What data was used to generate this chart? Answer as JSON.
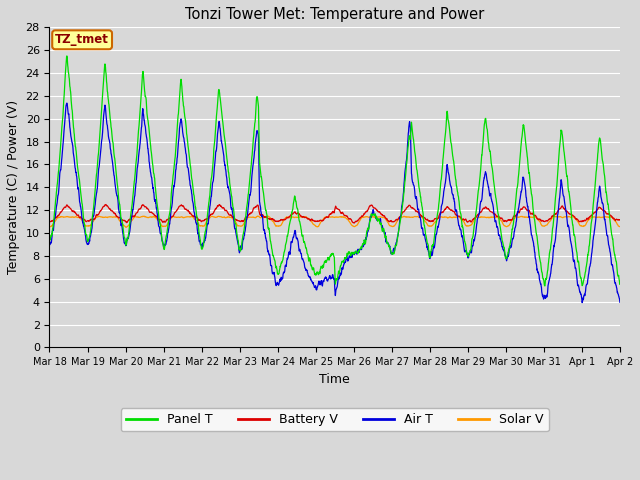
{
  "title": "Tonzi Tower Met: Temperature and Power",
  "xlabel": "Time",
  "ylabel": "Temperature (C) / Power (V)",
  "ylim": [
    0,
    28
  ],
  "yticks": [
    0,
    2,
    4,
    6,
    8,
    10,
    12,
    14,
    16,
    18,
    20,
    22,
    24,
    26,
    28
  ],
  "annotation_label": "TZ_tmet",
  "annotation_color": "#8b0000",
  "annotation_bg": "#ffff99",
  "annotation_border": "#cc6600",
  "colors": {
    "Panel T": "#00dd00",
    "Battery V": "#dd0000",
    "Air T": "#0000dd",
    "Solar V": "#ff9900"
  },
  "legend_labels": [
    "Panel T",
    "Battery V",
    "Air T",
    "Solar V"
  ],
  "bg_color": "#d8d8d8",
  "plot_bg": "#d8d8d8",
  "grid_color": "#ffffff",
  "tick_labels": [
    "Mar 18",
    "Mar 19",
    "Mar 20",
    "Mar 21",
    "Mar 22",
    "Mar 23",
    "Mar 24",
    "Mar 25",
    "Mar 26",
    "Mar 27",
    "Mar 28",
    "Mar 29",
    "Mar 30",
    "Mar 31",
    "Apr 1",
    "Apr 2"
  ],
  "n_days": 15,
  "samples_per_day": 144
}
